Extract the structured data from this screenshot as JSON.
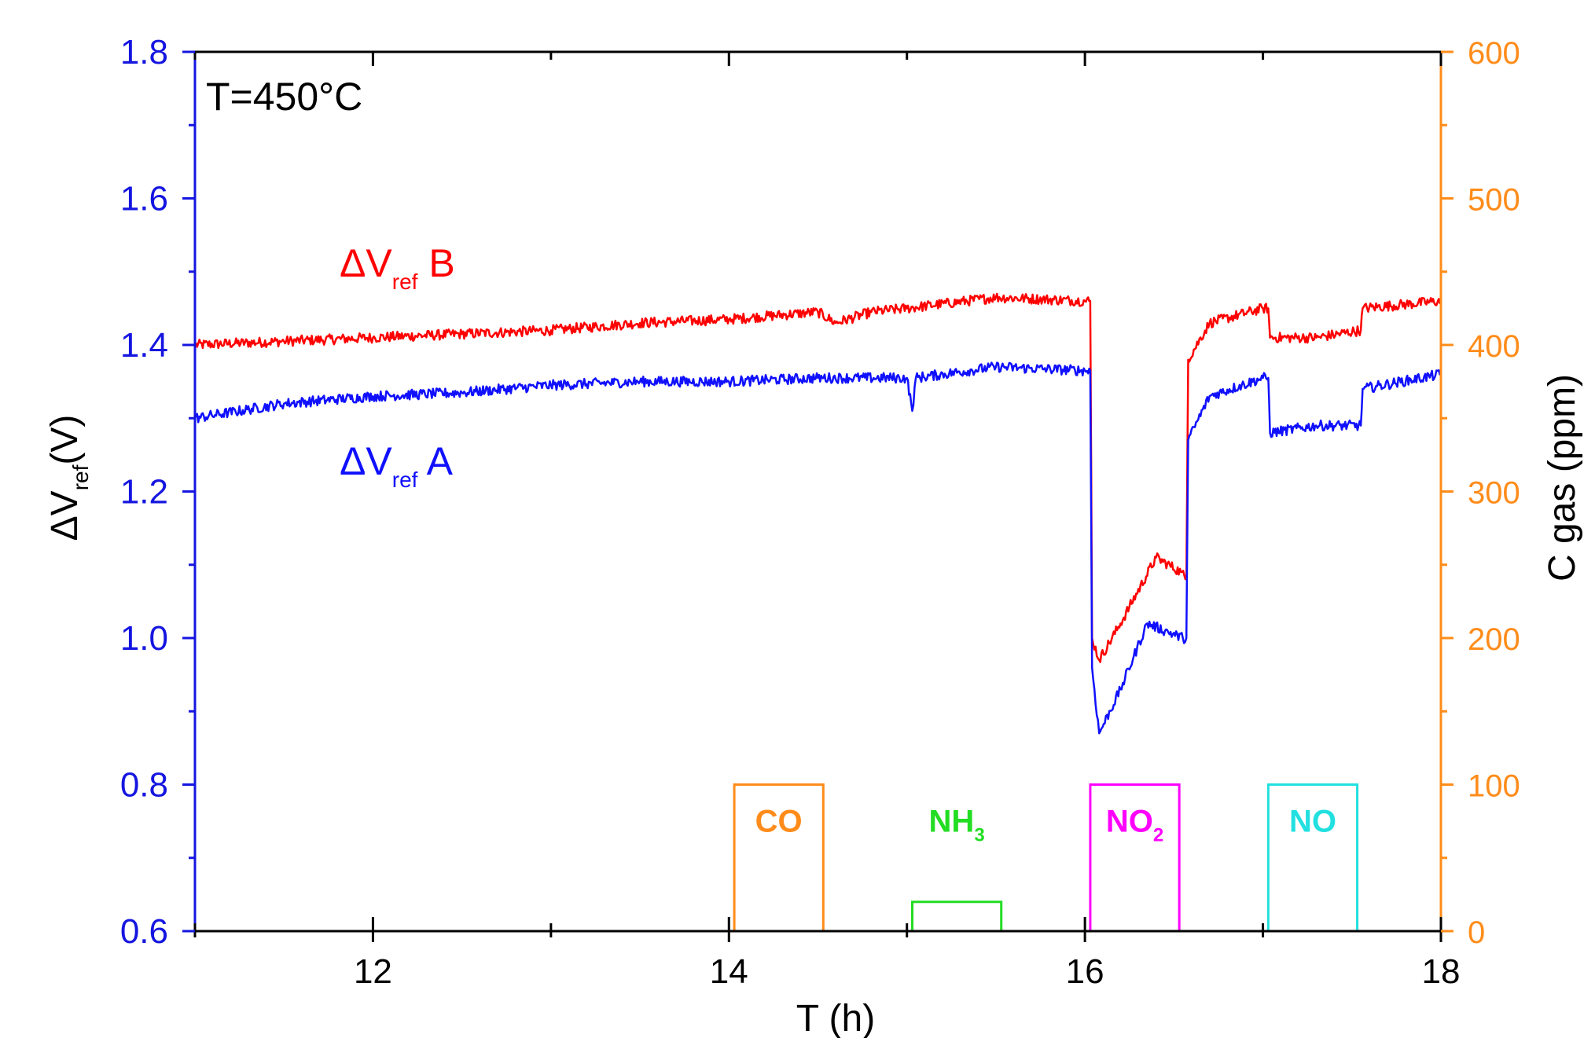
{
  "chart_data": {
    "type": "line",
    "annotation": "T=450°C",
    "xlabel": "T (h)",
    "xlim": [
      11,
      18
    ],
    "xticks": [
      12,
      14,
      16,
      18
    ],
    "ylabel_left": {
      "main": "ΔV",
      "sub": "ref",
      "tail": "(V)"
    },
    "ylim_left": [
      0.6,
      1.8
    ],
    "yticks_left": [
      0.6,
      0.8,
      1.0,
      1.2,
      1.4,
      1.6,
      1.8
    ],
    "ylabel_right": "C gas (ppm)",
    "ylim_right": [
      0,
      600
    ],
    "yticks_right": [
      0,
      100,
      200,
      300,
      400,
      500,
      600
    ],
    "colors": {
      "left_axis": "#1515e0",
      "right_axis": "#ff8c1a",
      "series_b": "#ff0000",
      "series_a": "#1010ff",
      "frame": "#000000"
    },
    "series": [
      {
        "label_main": "ΔV",
        "label_sub": "ref",
        "label_tail": " B",
        "color": "#ff0000",
        "points": [
          [
            11.0,
            1.4
          ],
          [
            11.5,
            1.405
          ],
          [
            12.0,
            1.41
          ],
          [
            12.5,
            1.415
          ],
          [
            13.0,
            1.42
          ],
          [
            13.5,
            1.43
          ],
          [
            14.0,
            1.435
          ],
          [
            14.5,
            1.445
          ],
          [
            14.6,
            1.43
          ],
          [
            14.8,
            1.445
          ],
          [
            15.0,
            1.45
          ],
          [
            15.5,
            1.465
          ],
          [
            16.0,
            1.46
          ],
          [
            16.03,
            1.46
          ],
          [
            16.04,
            1.0
          ],
          [
            16.08,
            0.97
          ],
          [
            16.2,
            1.02
          ],
          [
            16.4,
            1.11
          ],
          [
            16.54,
            1.09
          ],
          [
            16.57,
            1.08
          ],
          [
            16.58,
            1.38
          ],
          [
            16.7,
            1.43
          ],
          [
            17.0,
            1.45
          ],
          [
            17.03,
            1.45
          ],
          [
            17.04,
            1.41
          ],
          [
            17.3,
            1.41
          ],
          [
            17.55,
            1.42
          ],
          [
            17.56,
            1.45
          ],
          [
            18.0,
            1.46
          ]
        ]
      },
      {
        "label_main": "ΔV",
        "label_sub": "ref",
        "label_tail": " A",
        "color": "#1010ff",
        "points": [
          [
            11.0,
            1.3
          ],
          [
            11.5,
            1.32
          ],
          [
            12.0,
            1.33
          ],
          [
            12.5,
            1.335
          ],
          [
            13.0,
            1.345
          ],
          [
            13.5,
            1.35
          ],
          [
            14.0,
            1.35
          ],
          [
            14.5,
            1.355
          ],
          [
            15.0,
            1.355
          ],
          [
            15.03,
            1.31
          ],
          [
            15.05,
            1.355
          ],
          [
            15.5,
            1.37
          ],
          [
            16.0,
            1.365
          ],
          [
            16.03,
            1.365
          ],
          [
            16.04,
            0.96
          ],
          [
            16.08,
            0.87
          ],
          [
            16.2,
            0.93
          ],
          [
            16.35,
            1.02
          ],
          [
            16.45,
            1.01
          ],
          [
            16.55,
            1.0
          ],
          [
            16.57,
            1.0
          ],
          [
            16.58,
            1.27
          ],
          [
            16.7,
            1.33
          ],
          [
            17.0,
            1.355
          ],
          [
            17.03,
            1.355
          ],
          [
            17.04,
            1.28
          ],
          [
            17.3,
            1.29
          ],
          [
            17.55,
            1.29
          ],
          [
            17.56,
            1.34
          ],
          [
            18.0,
            1.36
          ]
        ]
      }
    ],
    "gas_pulses": [
      {
        "gas": "CO",
        "sub": "",
        "color": "#ff8c1a",
        "x0": 14.03,
        "x1": 14.53,
        "ppm": 100
      },
      {
        "gas": "NH",
        "sub": "3",
        "color": "#22dd22",
        "x0": 15.03,
        "x1": 15.53,
        "ppm": 20
      },
      {
        "gas": "NO",
        "sub": "2",
        "color": "#ff00ff",
        "x0": 16.03,
        "x1": 16.53,
        "ppm": 100
      },
      {
        "gas": "NO",
        "sub": "",
        "color": "#22e0e0",
        "x0": 17.03,
        "x1": 17.53,
        "ppm": 100
      }
    ]
  }
}
